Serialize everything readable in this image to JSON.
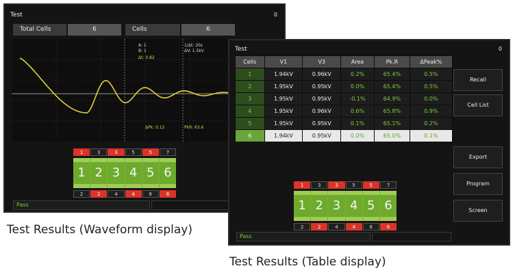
{
  "waveform_screen": {
    "title": "Test",
    "indicator": "0",
    "total_cells_label": "Total Cells",
    "total_cells": "6",
    "cells_label": "Cells",
    "cells": "6",
    "readouts": [
      "A: 1",
      "B: 1",
      "Δt: 0.82",
      "1/Δt: 20s",
      "ΔV: 1.5kV",
      "ΔPk: 0.12",
      "PkR: 63.6"
    ],
    "connector": {
      "top": [
        "1",
        "3",
        "3",
        "5",
        "5",
        "7"
      ],
      "middle": [
        "1",
        "2",
        "3",
        "4",
        "5",
        "6"
      ],
      "bottom": [
        "2",
        "2",
        "4",
        "4",
        "6",
        "6"
      ]
    },
    "status": "Pass",
    "caption": "Test Results (Waveform display)"
  },
  "table_screen": {
    "title": "Test",
    "indicator": "0",
    "table": {
      "header": [
        "Cells",
        "V1",
        "V3",
        "Area",
        "Pk.R",
        "ΔPeak%"
      ],
      "rows": [
        [
          "1",
          "1.94kV",
          "0.96kV",
          "0.2%",
          "65.4%",
          "0.5%"
        ],
        [
          "2",
          "1.95kV",
          "0.95kV",
          "0.0%",
          "65.4%",
          "0.5%"
        ],
        [
          "3",
          "1.95kV",
          "0.95kV",
          "-0.1%",
          "64.9%",
          "0.0%"
        ],
        [
          "4",
          "1.95kV",
          "0.96kV",
          "0.6%",
          "65.8%",
          "0.9%"
        ],
        [
          "5",
          "1.95kV",
          "0.95kV",
          "0.1%",
          "65.1%",
          "0.2%"
        ],
        [
          "6",
          "1.94kV",
          "0.95kV",
          "0.0%",
          "65.0%",
          "0.1%"
        ]
      ]
    },
    "buttons": [
      "Recall",
      "Cell List",
      "Export",
      "Program",
      "Screen"
    ],
    "connector": {
      "top": [
        "1",
        "3",
        "3",
        "5",
        "5",
        "7"
      ],
      "middle": [
        "1",
        "2",
        "3",
        "4",
        "5",
        "6"
      ],
      "bottom": [
        "2",
        "2",
        "4",
        "4",
        "6",
        "6"
      ]
    },
    "status": "Pass",
    "caption": "Test Results (Table display)"
  }
}
